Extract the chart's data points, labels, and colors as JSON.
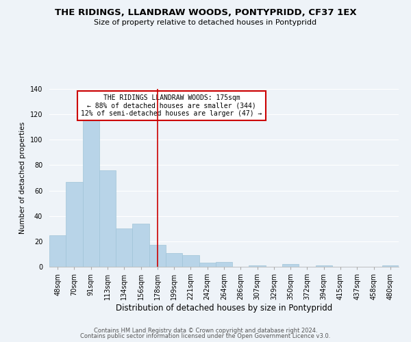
{
  "title": "THE RIDINGS, LLANDRAW WOODS, PONTYPRIDD, CF37 1EX",
  "subtitle": "Size of property relative to detached houses in Pontypridd",
  "xlabel": "Distribution of detached houses by size in Pontypridd",
  "ylabel": "Number of detached properties",
  "categories": [
    "48sqm",
    "70sqm",
    "91sqm",
    "113sqm",
    "134sqm",
    "156sqm",
    "178sqm",
    "199sqm",
    "221sqm",
    "242sqm",
    "264sqm",
    "286sqm",
    "307sqm",
    "329sqm",
    "350sqm",
    "372sqm",
    "394sqm",
    "415sqm",
    "437sqm",
    "458sqm",
    "480sqm"
  ],
  "values": [
    25,
    67,
    118,
    76,
    30,
    34,
    17,
    11,
    9,
    3,
    4,
    0,
    1,
    0,
    2,
    0,
    1,
    0,
    0,
    0,
    1
  ],
  "bar_color": "#b8d4e8",
  "bar_edge_color": "#a0c4d8",
  "reference_line_x": 6,
  "reference_line_color": "#cc0000",
  "annotation_text": "THE RIDINGS LLANDRAW WOODS: 175sqm\n← 88% of detached houses are smaller (344)\n12% of semi-detached houses are larger (47) →",
  "annotation_box_color": "#ffffff",
  "annotation_box_edge_color": "#cc0000",
  "ylim": [
    0,
    140
  ],
  "yticks": [
    0,
    20,
    40,
    60,
    80,
    100,
    120,
    140
  ],
  "footer_line1": "Contains HM Land Registry data © Crown copyright and database right 2024.",
  "footer_line2": "Contains public sector information licensed under the Open Government Licence v3.0.",
  "background_color": "#eef3f8",
  "grid_color": "#ffffff",
  "title_fontsize": 9.5,
  "subtitle_fontsize": 8,
  "xlabel_fontsize": 8.5,
  "ylabel_fontsize": 7.5,
  "tick_fontsize": 7,
  "annotation_fontsize": 7,
  "footer_fontsize": 6
}
